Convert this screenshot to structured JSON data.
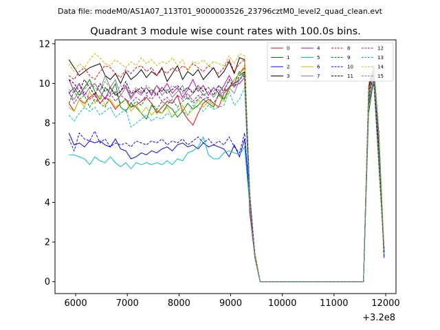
{
  "chart_data": {
    "type": "line",
    "suptitle": "Data file: modeM0/AS1A07_113T01_9000003526_23796cztM0_level2_quad_clean.evt",
    "title": "Quadrant 3 module wise count rates with 100.0s bins.",
    "xlabel": "",
    "ylabel": "",
    "x_offset_label": "+3.2e8",
    "xlim": [
      5600,
      12200
    ],
    "ylim": [
      -0.6,
      12.2
    ],
    "xticks": [
      6000,
      7000,
      8000,
      9000,
      10000,
      11000,
      12000
    ],
    "xtick_labels": [
      "6000",
      "7000",
      "8000",
      "9000",
      "10000",
      "11000",
      "12000"
    ],
    "yticks": [
      0,
      2,
      4,
      6,
      8,
      10,
      12
    ],
    "ytick_labels": [
      "0",
      "2",
      "4",
      "6",
      "8",
      "10",
      "12"
    ],
    "grid": false,
    "legend": {
      "placement": "top-right",
      "columns": 4
    },
    "x_start": 5870,
    "x_step": 100,
    "gap": {
      "start_index": 35,
      "end_index": 57
    },
    "series": [
      {
        "name": "0",
        "color": "#ff0000",
        "dash": "solid",
        "values": [
          9.0,
          8.6,
          9.2,
          9.0,
          9.3,
          9.5,
          9.0,
          9.3,
          9.1,
          8.7,
          9.0,
          9.2,
          8.8,
          8.9,
          9.1,
          9.3,
          9.0,
          8.5,
          8.8,
          9.1,
          9.0,
          9.4,
          8.6,
          8.2,
          7.9,
          8.5,
          9.0,
          9.2,
          9.0,
          8.8,
          9.5,
          9.8,
          10.2,
          10.5,
          10.8
        ]
      },
      {
        "name": "1",
        "color": "#008000",
        "dash": "solid",
        "values": [
          9.5,
          9.8,
          9.4,
          9.8,
          10.2,
          9.6,
          9.2,
          9.8,
          9.5,
          10.0,
          8.8,
          8.6,
          9.0,
          8.8,
          8.5,
          8.2,
          8.9,
          8.6,
          8.5,
          8.9,
          8.7,
          8.3,
          8.6,
          9.0,
          8.7,
          8.9,
          9.2,
          9.0,
          8.8,
          9.5,
          9.2,
          9.8,
          10.0,
          10.6,
          10.3
        ]
      },
      {
        "name": "2",
        "color": "#0000ff",
        "dash": "solid",
        "values": [
          7.5,
          6.9,
          7.0,
          6.8,
          7.1,
          7.0,
          7.1,
          6.9,
          6.8,
          7.2,
          6.7,
          6.6,
          6.2,
          6.3,
          6.5,
          6.4,
          6.6,
          6.5,
          6.7,
          6.8,
          6.6,
          6.9,
          7.0,
          6.8,
          6.9,
          6.7,
          7.0,
          6.8,
          6.9,
          6.8,
          6.7,
          6.3,
          6.9,
          6.3,
          7.2
        ]
      },
      {
        "name": "3",
        "color": "#000000",
        "dash": "solid",
        "values": [
          11.2,
          10.8,
          10.4,
          10.6,
          10.8,
          10.9,
          11.0,
          10.4,
          10.2,
          10.5,
          10.0,
          10.6,
          10.2,
          10.4,
          10.7,
          10.3,
          10.6,
          10.4,
          10.8,
          10.1,
          10.5,
          10.9,
          10.2,
          10.6,
          10.4,
          10.7,
          10.2,
          10.5,
          10.8,
          10.3,
          10.6,
          11.1,
          10.5,
          11.3,
          11.2
        ]
      },
      {
        "name": "4",
        "color": "#bf00bf",
        "dash": "solid",
        "values": [
          10.2,
          9.6,
          10.0,
          9.4,
          9.8,
          10.0,
          9.6,
          9.2,
          9.8,
          9.4,
          9.6,
          9.9,
          9.3,
          9.7,
          9.5,
          9.8,
          9.4,
          9.9,
          9.6,
          10.0,
          9.5,
          9.8,
          9.3,
          9.7,
          10.2,
          9.6,
          9.9,
          9.4,
          9.8,
          9.5,
          9.9,
          10.4,
          9.9,
          10.0,
          10.3
        ]
      },
      {
        "name": "5",
        "color": "#00bfbf",
        "dash": "solid",
        "values": [
          6.4,
          6.4,
          6.3,
          6.2,
          5.9,
          6.3,
          6.1,
          6.0,
          6.3,
          6.0,
          5.8,
          6.0,
          5.7,
          6.0,
          5.9,
          6.0,
          5.9,
          6.0,
          5.9,
          6.1,
          5.9,
          6.2,
          6.1,
          6.5,
          6.6,
          6.8,
          7.3,
          6.4,
          6.2,
          6.2,
          6.5,
          6.6,
          6.5,
          6.4,
          6.8
        ]
      },
      {
        "name": "6",
        "color": "#bfbf00",
        "dash": "solid",
        "values": [
          8.8,
          8.6,
          9.2,
          8.8,
          9.6,
          9.0,
          9.4,
          8.9,
          9.2,
          8.8,
          9.0,
          9.2,
          8.6,
          8.9,
          8.5,
          8.8,
          8.4,
          8.7,
          8.5,
          8.8,
          8.3,
          8.6,
          8.9,
          8.4,
          8.7,
          9.2,
          8.8,
          9.1,
          8.9,
          9.4,
          9.1,
          9.7,
          10.2,
          10.5,
          10.9
        ]
      },
      {
        "name": "7",
        "color": "#808080",
        "dash": "solid",
        "values": [
          9.5,
          9.2,
          9.6,
          9.4,
          9.8,
          10.0,
          9.6,
          10.4,
          9.8,
          10.2,
          9.4,
          9.8,
          9.2,
          9.6,
          9.4,
          9.8,
          9.5,
          9.9,
          9.4,
          9.7,
          9.3,
          9.6,
          9.9,
          9.2,
          9.5,
          9.8,
          9.4,
          9.6,
          9.3,
          9.7,
          9.2,
          9.8,
          9.5,
          10.2,
          10.6
        ]
      },
      {
        "name": "8",
        "color": "#ff0000",
        "dash": "dashed",
        "values": [
          10.4,
          10.2,
          10.6,
          10.8,
          10.4,
          10.2,
          10.6,
          10.9,
          10.8,
          10.5,
          10.3,
          10.7,
          10.5,
          10.8,
          10.9,
          10.6,
          10.8,
          10.4,
          10.7,
          10.5,
          10.8,
          10.6,
          10.9,
          10.7,
          11.0,
          10.8,
          10.6,
          10.9,
          10.7,
          10.5,
          10.8,
          11.2,
          10.6,
          11.0,
          11.2
        ]
      },
      {
        "name": "9",
        "color": "#008000",
        "dash": "dashed",
        "values": [
          9.0,
          9.6,
          9.2,
          9.4,
          8.8,
          9.2,
          9.0,
          8.8,
          9.4,
          9.6,
          9.0,
          9.2,
          8.8,
          9.1,
          8.9,
          9.3,
          9.0,
          8.7,
          9.1,
          8.9,
          9.2,
          8.8,
          9.1,
          9.3,
          9.0,
          9.2,
          9.5,
          9.2,
          9.0,
          9.4,
          9.2,
          9.8,
          10.0,
          10.2,
          10.5
        ]
      },
      {
        "name": "10",
        "color": "#0000ff",
        "dash": "dashed",
        "values": [
          7.2,
          6.6,
          7.5,
          7.2,
          7.1,
          7.6,
          7.0,
          7.2,
          6.8,
          7.0,
          6.9,
          7.0,
          6.8,
          7.1,
          7.0,
          6.9,
          7.1,
          7.0,
          7.2,
          6.9,
          7.1,
          7.0,
          7.2,
          6.9,
          7.1,
          7.3,
          7.0,
          7.2,
          6.9,
          7.1,
          6.9,
          7.3,
          6.8,
          6.5,
          7.5
        ]
      },
      {
        "name": "11",
        "color": "#000000",
        "dash": "dashed",
        "values": [
          10.2,
          10.0,
          9.6,
          10.2,
          9.8,
          9.4,
          10.0,
          9.6,
          9.8,
          9.4,
          9.6,
          10.1,
          9.5,
          9.6,
          9.8,
          9.5,
          9.7,
          9.4,
          9.8,
          9.5,
          9.7,
          9.9,
          9.6,
          9.8,
          9.5,
          9.9,
          9.6,
          9.8,
          9.4,
          9.9,
          9.6,
          10.2,
          9.8,
          10.4,
          10.6
        ]
      },
      {
        "name": "12",
        "color": "#bf00bf",
        "dash": "dashed",
        "values": [
          9.6,
          9.0,
          9.4,
          9.6,
          9.2,
          9.4,
          9.0,
          9.3,
          9.5,
          9.1,
          9.4,
          9.2,
          9.0,
          9.3,
          9.1,
          9.4,
          9.2,
          9.5,
          9.1,
          9.3,
          9.0,
          9.4,
          9.2,
          9.5,
          9.1,
          9.4,
          9.2,
          9.3,
          9.0,
          9.4,
          9.6,
          9.8,
          10.0,
          10.2,
          10.4
        ]
      },
      {
        "name": "13",
        "color": "#00bfbf",
        "dash": "dashed",
        "values": [
          8.4,
          8.1,
          8.5,
          8.8,
          8.6,
          8.8,
          8.4,
          8.6,
          8.8,
          8.3,
          8.5,
          8.7,
          7.8,
          8.0,
          8.2,
          8.4,
          8.1,
          8.3,
          8.2,
          8.5,
          8.3,
          8.7,
          8.6,
          8.4,
          8.9,
          8.8,
          8.6,
          8.9,
          8.7,
          8.8,
          8.9,
          9.6,
          8.9,
          9.2,
          9.8
        ]
      },
      {
        "name": "14",
        "color": "#bfbf00",
        "dash": "dashed",
        "values": [
          11.0,
          10.6,
          11.0,
          10.8,
          11.2,
          11.5,
          11.3,
          11.0,
          10.9,
          11.2,
          11.0,
          10.8,
          11.1,
          10.9,
          11.3,
          11.0,
          11.2,
          10.9,
          11.1,
          11.0,
          11.3,
          10.9,
          11.2,
          10.6,
          11.1,
          11.0,
          11.2,
          10.9,
          11.1,
          11.0,
          10.9,
          11.4,
          11.0,
          11.5,
          11.4
        ]
      },
      {
        "name": "15",
        "color": "#808080",
        "dash": "dashed",
        "values": [
          9.7,
          9.5,
          9.9,
          9.7,
          10.0,
          9.8,
          9.6,
          10.1,
          9.8,
          9.5,
          9.9,
          9.7,
          9.5,
          9.8,
          9.6,
          9.9,
          9.7,
          9.5,
          9.8,
          9.6,
          9.9,
          9.7,
          9.5,
          9.8,
          9.6,
          9.9,
          9.7,
          9.8,
          9.6,
          9.9,
          9.7,
          10.1,
          9.8,
          10.2,
          10.4
        ]
      }
    ]
  }
}
